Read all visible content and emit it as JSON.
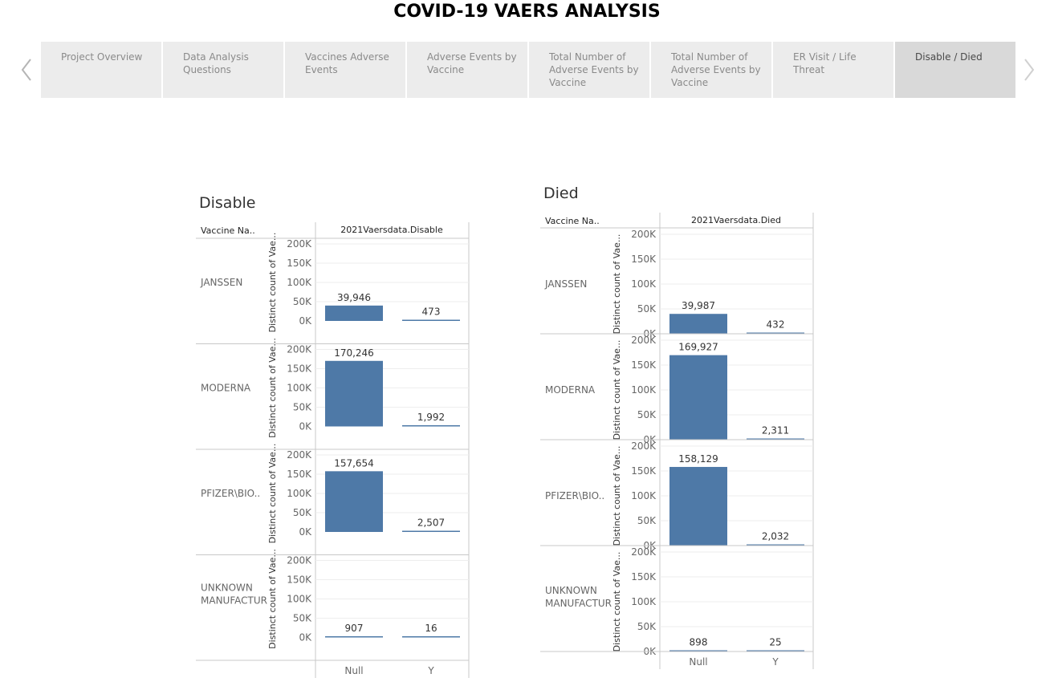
{
  "page": {
    "title": "COVID-19 VAERS ANALYSIS"
  },
  "nav": {
    "prev_icon": "chevron-left-icon",
    "next_icon": "chevron-right-icon",
    "tabs": [
      {
        "label": "Project Overview",
        "active": false
      },
      {
        "label": "Data Analysis Questions",
        "active": false
      },
      {
        "label": "Vaccines Adverse Events",
        "active": false
      },
      {
        "label": "Adverse Events by Vaccine",
        "active": false
      },
      {
        "label": "Total Number of Adverse Events by Vaccine",
        "active": false
      },
      {
        "label": "Total Number of Adverse Events by Vaccine",
        "active": false
      },
      {
        "label": "ER Visit / Life Threat",
        "active": false
      },
      {
        "label": "Disable / Died",
        "active": true
      }
    ]
  },
  "colors": {
    "bar": "#4e79a7",
    "grid": "#eeeeee",
    "divider": "#c8c8c8"
  },
  "chart_data": [
    {
      "type": "bar",
      "title": "Disable",
      "row_header": "Vaccine Na..",
      "column_header": "2021Vaersdata.Disable",
      "ylabel": "Distinct count of Vae...",
      "categories": [
        "Null",
        "Y"
      ],
      "ylim": [
        0,
        200000
      ],
      "yticks": [
        "0K",
        "50K",
        "100K",
        "150K",
        "200K"
      ],
      "rows": [
        {
          "name": "JANSSEN",
          "values": [
            39946,
            473
          ],
          "labels": [
            "39,946",
            "473"
          ]
        },
        {
          "name": "MODERNA",
          "values": [
            170246,
            1992
          ],
          "labels": [
            "170,246",
            "1,992"
          ]
        },
        {
          "name": "PFIZER\\BIO..",
          "values": [
            157654,
            2507
          ],
          "labels": [
            "157,654",
            "2,507"
          ]
        },
        {
          "name": "UNKNOWN MANUFACTUR",
          "values": [
            907,
            16
          ],
          "labels": [
            "907",
            "16"
          ]
        }
      ]
    },
    {
      "type": "bar",
      "title": "Died",
      "row_header": "Vaccine Na..",
      "column_header": "2021Vaersdata.Died",
      "ylabel": "Distinct count of Vae...",
      "categories": [
        "Null",
        "Y"
      ],
      "ylim": [
        0,
        200000
      ],
      "yticks": [
        "0K",
        "50K",
        "100K",
        "150K",
        "200K"
      ],
      "rows": [
        {
          "name": "JANSSEN",
          "values": [
            39987,
            432
          ],
          "labels": [
            "39,987",
            "432"
          ]
        },
        {
          "name": "MODERNA",
          "values": [
            169927,
            2311
          ],
          "labels": [
            "169,927",
            "2,311"
          ]
        },
        {
          "name": "PFIZER\\BIO..",
          "values": [
            158129,
            2032
          ],
          "labels": [
            "158,129",
            "2,032"
          ]
        },
        {
          "name": "UNKNOWN MANUFACTUR",
          "values": [
            898,
            25
          ],
          "labels": [
            "898",
            "25"
          ]
        }
      ]
    }
  ]
}
